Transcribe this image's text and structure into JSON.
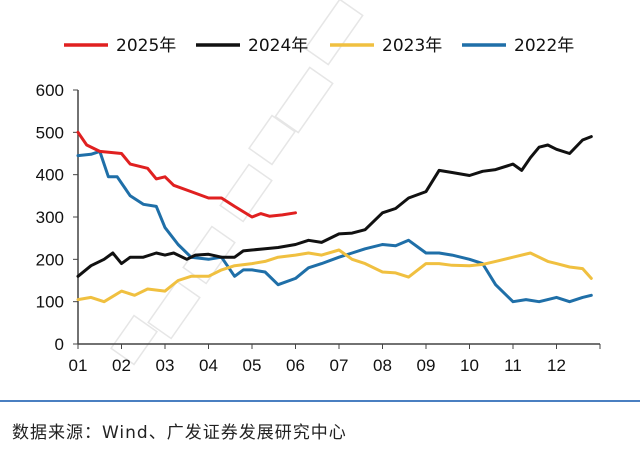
{
  "chart_data": {
    "type": "line",
    "categories": [
      "01",
      "02",
      "03",
      "04",
      "05",
      "06",
      "07",
      "08",
      "09",
      "10",
      "11",
      "12"
    ],
    "ylim": [
      0,
      600
    ],
    "yticks": [
      "0",
      "100",
      "200",
      "300",
      "400",
      "500",
      "600"
    ],
    "legend_position": "top",
    "series": [
      {
        "name": "2025年",
        "color": "#e02020",
        "points": [
          [
            1.0,
            500
          ],
          [
            1.2,
            470
          ],
          [
            1.5,
            455
          ],
          [
            2.0,
            450
          ],
          [
            2.2,
            425
          ],
          [
            2.6,
            415
          ],
          [
            2.8,
            390
          ],
          [
            3.0,
            395
          ],
          [
            3.2,
            375
          ],
          [
            3.6,
            360
          ],
          [
            4.0,
            345
          ],
          [
            4.3,
            345
          ],
          [
            4.6,
            325
          ],
          [
            5.0,
            300
          ],
          [
            5.2,
            308
          ],
          [
            5.4,
            302
          ],
          [
            5.7,
            305
          ],
          [
            6.0,
            310
          ]
        ]
      },
      {
        "name": "2024年",
        "color": "#111111",
        "points": [
          [
            1.0,
            160
          ],
          [
            1.3,
            185
          ],
          [
            1.6,
            200
          ],
          [
            1.8,
            215
          ],
          [
            2.0,
            190
          ],
          [
            2.2,
            205
          ],
          [
            2.5,
            205
          ],
          [
            2.8,
            215
          ],
          [
            3.0,
            210
          ],
          [
            3.2,
            215
          ],
          [
            3.5,
            200
          ],
          [
            3.7,
            210
          ],
          [
            4.0,
            212
          ],
          [
            4.3,
            205
          ],
          [
            4.6,
            205
          ],
          [
            4.8,
            220
          ],
          [
            5.0,
            222
          ],
          [
            5.3,
            225
          ],
          [
            5.6,
            228
          ],
          [
            6.0,
            235
          ],
          [
            6.3,
            245
          ],
          [
            6.6,
            240
          ],
          [
            7.0,
            260
          ],
          [
            7.3,
            262
          ],
          [
            7.6,
            270
          ],
          [
            8.0,
            310
          ],
          [
            8.3,
            320
          ],
          [
            8.6,
            345
          ],
          [
            9.0,
            360
          ],
          [
            9.3,
            410
          ],
          [
            9.6,
            405
          ],
          [
            10.0,
            398
          ],
          [
            10.3,
            408
          ],
          [
            10.6,
            412
          ],
          [
            11.0,
            425
          ],
          [
            11.2,
            410
          ],
          [
            11.4,
            440
          ],
          [
            11.6,
            465
          ],
          [
            11.8,
            470
          ],
          [
            12.0,
            460
          ],
          [
            12.3,
            450
          ],
          [
            12.6,
            482
          ],
          [
            12.8,
            490
          ]
        ]
      },
      {
        "name": "2023年",
        "color": "#f0c040",
        "points": [
          [
            1.0,
            105
          ],
          [
            1.3,
            110
          ],
          [
            1.6,
            100
          ],
          [
            2.0,
            125
          ],
          [
            2.3,
            115
          ],
          [
            2.6,
            130
          ],
          [
            3.0,
            125
          ],
          [
            3.3,
            150
          ],
          [
            3.6,
            160
          ],
          [
            4.0,
            160
          ],
          [
            4.3,
            175
          ],
          [
            4.6,
            185
          ],
          [
            5.0,
            190
          ],
          [
            5.3,
            195
          ],
          [
            5.6,
            205
          ],
          [
            6.0,
            210
          ],
          [
            6.3,
            215
          ],
          [
            6.6,
            210
          ],
          [
            7.0,
            222
          ],
          [
            7.3,
            200
          ],
          [
            7.6,
            190
          ],
          [
            8.0,
            170
          ],
          [
            8.3,
            168
          ],
          [
            8.6,
            158
          ],
          [
            9.0,
            190
          ],
          [
            9.3,
            190
          ],
          [
            9.6,
            186
          ],
          [
            10.0,
            185
          ],
          [
            10.3,
            188
          ],
          [
            10.6,
            195
          ],
          [
            11.0,
            205
          ],
          [
            11.4,
            215
          ],
          [
            11.8,
            195
          ],
          [
            12.0,
            190
          ],
          [
            12.3,
            182
          ],
          [
            12.6,
            178
          ],
          [
            12.8,
            155
          ]
        ]
      },
      {
        "name": "2022年",
        "color": "#1f6fa8",
        "points": [
          [
            1.0,
            445
          ],
          [
            1.3,
            448
          ],
          [
            1.5,
            455
          ],
          [
            1.7,
            395
          ],
          [
            1.9,
            395
          ],
          [
            2.2,
            350
          ],
          [
            2.5,
            330
          ],
          [
            2.8,
            325
          ],
          [
            3.0,
            275
          ],
          [
            3.3,
            235
          ],
          [
            3.6,
            205
          ],
          [
            4.0,
            200
          ],
          [
            4.3,
            205
          ],
          [
            4.6,
            160
          ],
          [
            4.8,
            175
          ],
          [
            5.0,
            175
          ],
          [
            5.3,
            170
          ],
          [
            5.6,
            140
          ],
          [
            6.0,
            155
          ],
          [
            6.3,
            180
          ],
          [
            6.6,
            190
          ],
          [
            7.0,
            205
          ],
          [
            7.3,
            215
          ],
          [
            7.6,
            225
          ],
          [
            8.0,
            235
          ],
          [
            8.3,
            232
          ],
          [
            8.6,
            245
          ],
          [
            9.0,
            215
          ],
          [
            9.3,
            215
          ],
          [
            9.6,
            210
          ],
          [
            10.0,
            200
          ],
          [
            10.3,
            190
          ],
          [
            10.6,
            140
          ],
          [
            11.0,
            100
          ],
          [
            11.3,
            105
          ],
          [
            11.6,
            100
          ],
          [
            12.0,
            110
          ],
          [
            12.3,
            100
          ],
          [
            12.6,
            110
          ],
          [
            12.8,
            115
          ]
        ]
      }
    ]
  },
  "source_text": "数据来源：Wind、广发证券发展研究中心"
}
